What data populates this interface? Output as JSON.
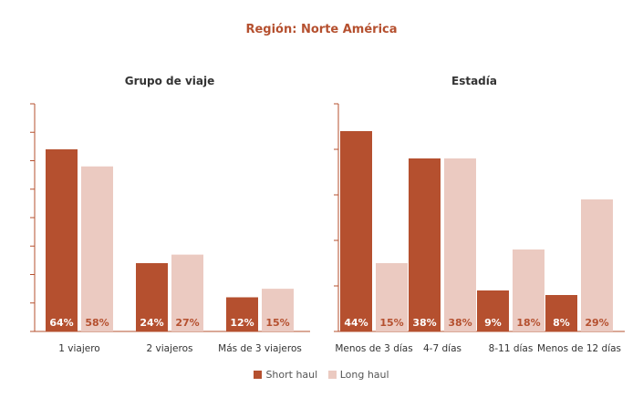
{
  "title": "Región: Norte América",
  "colors": {
    "short_haul": "#b5502f",
    "long_haul": "#ebcac1",
    "axis": "#b5502f",
    "label_on_dark": "#ffffff",
    "label_on_light": "#b5502f"
  },
  "legend": {
    "short_label": "Short haul",
    "long_label": "Long haul"
  },
  "chart_data": [
    {
      "type": "bar",
      "title": "Grupo de viaje",
      "categories": [
        "1 viajero",
        "2 viajeros",
        "Más de 3 viajeros"
      ],
      "series": [
        {
          "name": "Short haul",
          "values": [
            64,
            24,
            12
          ],
          "labels": [
            "64%",
            "24%",
            "12%"
          ]
        },
        {
          "name": "Long haul",
          "values": [
            58,
            27,
            15
          ],
          "labels": [
            "58%",
            "27%",
            "15%"
          ]
        }
      ],
      "ylim": [
        0,
        80
      ],
      "ticks": 8,
      "legend": "bottom"
    },
    {
      "type": "bar",
      "title": "Estadía",
      "categories": [
        "Menos de 3 días",
        "4-7 días",
        "8-11 días",
        "Menos de 12 días"
      ],
      "series": [
        {
          "name": "Short haul",
          "values": [
            44,
            38,
            9,
            8
          ],
          "labels": [
            "44%",
            "38%",
            "9%",
            "8%"
          ]
        },
        {
          "name": "Long haul",
          "values": [
            15,
            38,
            18,
            29
          ],
          "labels": [
            "15%",
            "38%",
            "18%",
            "29%"
          ]
        }
      ],
      "ylim": [
        0,
        50
      ],
      "ticks": 5,
      "legend": "bottom"
    }
  ]
}
